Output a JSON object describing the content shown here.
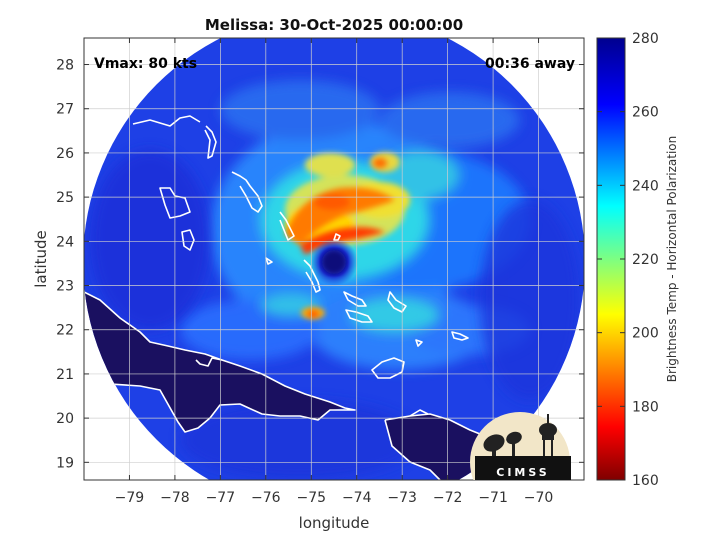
{
  "title": "Melissa: 30-Oct-2025 00:00:00",
  "vmax_label": "Vmax: 80 kts",
  "time_away_label": "00:36 away",
  "x_axis": {
    "label": "longitude",
    "range": [
      -80,
      -69
    ],
    "ticks": [
      -79,
      -78,
      -77,
      -76,
      -75,
      -74,
      -73,
      -72,
      -71,
      -70
    ]
  },
  "y_axis": {
    "label": "latitude",
    "range": [
      18.6,
      28.6
    ],
    "ticks": [
      19,
      20,
      21,
      22,
      23,
      24,
      25,
      26,
      27,
      28
    ]
  },
  "colorbar": {
    "label": "Brightness Temp - Horizontal Polarization",
    "range": [
      160,
      280
    ],
    "ticks": [
      160,
      180,
      200,
      220,
      240,
      260,
      280
    ],
    "colormap": [
      "#7f0000",
      "#ff0000",
      "#ffff00",
      "#00ffff",
      "#0000ff",
      "#00008f"
    ]
  },
  "storm_center": {
    "lon": -74.8,
    "lat": 23.5
  },
  "logo_text": "CIMSS",
  "colors": {
    "background_ocean": "#1e40e6",
    "land": "#1a1060",
    "coastline": "#ffffff",
    "grid": "#cccccc"
  }
}
